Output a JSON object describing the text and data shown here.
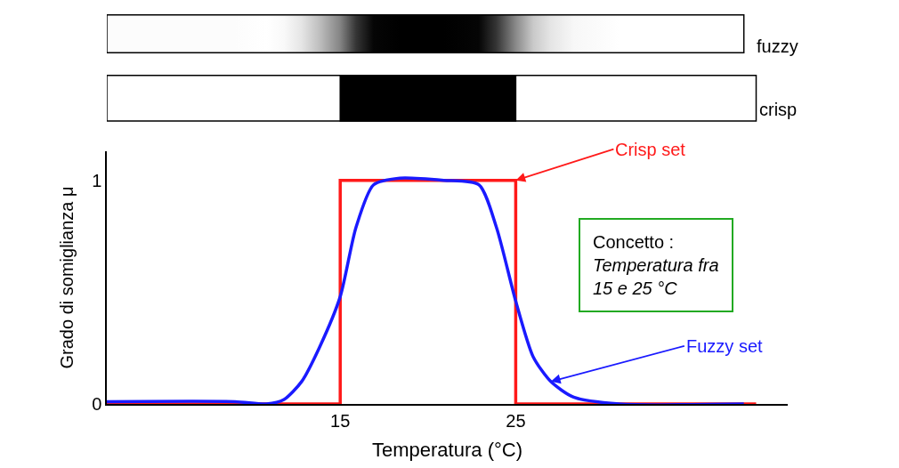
{
  "chart_data": {
    "type": "line",
    "xlabel": "Temperatura (°C)",
    "ylabel": "Grado di somiglianza μ",
    "xlim": [
      1.7,
      40.5
    ],
    "ylim": [
      0,
      1.13
    ],
    "xticks": [
      15,
      25
    ],
    "yticks": [
      0,
      1
    ],
    "marker": "none",
    "line_style": "solid",
    "series": [
      {
        "color": "#ff1a1a",
        "x": [
          1.7,
          15,
          15,
          25,
          25,
          38.7
        ],
        "values": [
          0,
          0,
          1,
          1,
          0,
          0
        ]
      },
      {
        "color": "#1a1aff",
        "x": [
          1.7,
          9,
          10.8,
          11.8,
          12.8,
          13.8,
          15,
          15.9,
          16.9,
          18.4,
          20.9,
          22.9,
          23.9,
          25,
          26,
          27,
          28.3,
          30.9,
          38
        ],
        "values": [
          0.01,
          0.01,
          0,
          0.02,
          0.1,
          0.25,
          0.48,
          0.79,
          0.98,
          1.01,
          1.0,
          0.98,
          0.79,
          0.46,
          0.21,
          0.1,
          0.03,
          0,
          0
        ]
      }
    ],
    "annotations": [
      "fuzzy",
      "crisp",
      {
        "text": "Crisp set",
        "x": 25,
        "y": 1
      },
      {
        "text": "Fuzzy set",
        "x": 27,
        "y": 0.1
      },
      "Concetto :\nTemperatura fra\n15 e 25 °C"
    ]
  }
}
